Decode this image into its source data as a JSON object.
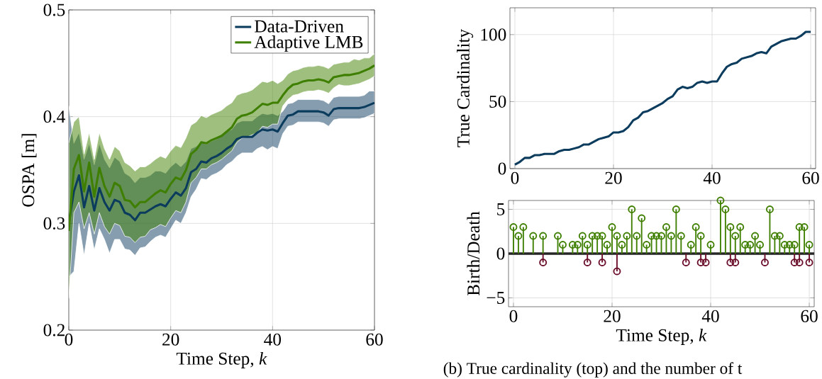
{
  "chart_data": [
    {
      "type": "line",
      "xlabel": "Time Step, *k*",
      "ylabel": "OSPA [m]",
      "xlim": [
        0,
        60
      ],
      "ylim": [
        0.2,
        0.5
      ],
      "xticks": [
        0,
        20,
        40,
        60
      ],
      "yticks": [
        0.2,
        0.3,
        0.4,
        0.5
      ],
      "grid": true,
      "legend": "top right",
      "x": [
        0,
        1,
        2,
        3,
        4,
        5,
        6,
        7,
        8,
        9,
        10,
        11,
        12,
        13,
        14,
        15,
        16,
        17,
        18,
        19,
        20,
        21,
        22,
        23,
        24,
        25,
        26,
        27,
        28,
        29,
        30,
        31,
        32,
        33,
        34,
        35,
        36,
        37,
        38,
        39,
        40,
        41,
        42,
        43,
        44,
        45,
        46,
        47,
        48,
        49,
        50,
        51,
        52,
        53,
        54,
        55,
        56,
        57,
        58,
        59,
        60
      ],
      "series": [
        {
          "name": "Data-Driven",
          "color": "#0b3c5d",
          "values": [
            0.3,
            0.33,
            0.345,
            0.315,
            0.335,
            0.312,
            0.333,
            0.32,
            0.312,
            0.322,
            0.32,
            0.31,
            0.308,
            0.303,
            0.31,
            0.31,
            0.313,
            0.316,
            0.318,
            0.316,
            0.323,
            0.329,
            0.326,
            0.333,
            0.348,
            0.351,
            0.358,
            0.357,
            0.361,
            0.363,
            0.366,
            0.37,
            0.373,
            0.379,
            0.381,
            0.381,
            0.381,
            0.385,
            0.388,
            0.387,
            0.388,
            0.386,
            0.394,
            0.401,
            0.402,
            0.405,
            0.405,
            0.405,
            0.405,
            0.405,
            0.404,
            0.401,
            0.407,
            0.408,
            0.408,
            0.408,
            0.408,
            0.408,
            0.409,
            0.411,
            0.413
          ],
          "lower": [
            0.25,
            0.255,
            0.3,
            0.27,
            0.3,
            0.275,
            0.295,
            0.285,
            0.272,
            0.285,
            0.285,
            0.276,
            0.275,
            0.27,
            0.277,
            0.278,
            0.283,
            0.287,
            0.289,
            0.287,
            0.295,
            0.303,
            0.3,
            0.31,
            0.325,
            0.332,
            0.342,
            0.341,
            0.345,
            0.347,
            0.35,
            0.355,
            0.358,
            0.363,
            0.366,
            0.366,
            0.366,
            0.37,
            0.372,
            0.369,
            0.372,
            0.37,
            0.384,
            0.391,
            0.392,
            0.395,
            0.395,
            0.395,
            0.395,
            0.395,
            0.394,
            0.391,
            0.397,
            0.398,
            0.398,
            0.398,
            0.398,
            0.398,
            0.399,
            0.401,
            0.403
          ],
          "upper": [
            0.41,
            0.375,
            0.385,
            0.36,
            0.375,
            0.355,
            0.375,
            0.36,
            0.352,
            0.362,
            0.358,
            0.347,
            0.344,
            0.338,
            0.343,
            0.343,
            0.345,
            0.349,
            0.349,
            0.347,
            0.353,
            0.357,
            0.353,
            0.358,
            0.37,
            0.372,
            0.376,
            0.374,
            0.377,
            0.379,
            0.382,
            0.386,
            0.388,
            0.394,
            0.396,
            0.396,
            0.396,
            0.4,
            0.403,
            0.402,
            0.403,
            0.401,
            0.405,
            0.412,
            0.413,
            0.416,
            0.416,
            0.416,
            0.416,
            0.416,
            0.415,
            0.412,
            0.418,
            0.419,
            0.419,
            0.419,
            0.419,
            0.419,
            0.42,
            0.424,
            0.424
          ]
        },
        {
          "name": "Adaptive LMB",
          "color": "#3f7f00",
          "values": [
            0.293,
            0.351,
            0.364,
            0.33,
            0.357,
            0.325,
            0.352,
            0.335,
            0.325,
            0.338,
            0.335,
            0.322,
            0.321,
            0.315,
            0.32,
            0.32,
            0.324,
            0.328,
            0.331,
            0.329,
            0.337,
            0.343,
            0.341,
            0.35,
            0.365,
            0.369,
            0.376,
            0.375,
            0.378,
            0.38,
            0.382,
            0.386,
            0.39,
            0.398,
            0.401,
            0.402,
            0.404,
            0.408,
            0.412,
            0.411,
            0.413,
            0.413,
            0.42,
            0.426,
            0.43,
            0.431,
            0.433,
            0.434,
            0.434,
            0.435,
            0.434,
            0.432,
            0.437,
            0.438,
            0.439,
            0.439,
            0.44,
            0.441,
            0.443,
            0.445,
            0.448
          ],
          "lower": [
            0.23,
            0.31,
            0.32,
            0.295,
            0.31,
            0.29,
            0.31,
            0.297,
            0.29,
            0.3,
            0.298,
            0.288,
            0.287,
            0.282,
            0.287,
            0.288,
            0.294,
            0.296,
            0.299,
            0.297,
            0.305,
            0.312,
            0.31,
            0.32,
            0.338,
            0.343,
            0.351,
            0.351,
            0.355,
            0.357,
            0.36,
            0.364,
            0.368,
            0.376,
            0.38,
            0.381,
            0.383,
            0.385,
            0.391,
            0.39,
            0.393,
            0.393,
            0.41,
            0.416,
            0.42,
            0.421,
            0.423,
            0.424,
            0.424,
            0.425,
            0.424,
            0.422,
            0.427,
            0.43,
            0.429,
            0.429,
            0.43,
            0.431,
            0.433,
            0.435,
            0.438
          ],
          "upper": [
            0.375,
            0.395,
            0.4,
            0.365,
            0.385,
            0.36,
            0.385,
            0.37,
            0.36,
            0.372,
            0.368,
            0.357,
            0.354,
            0.349,
            0.353,
            0.353,
            0.356,
            0.36,
            0.363,
            0.361,
            0.368,
            0.373,
            0.371,
            0.38,
            0.392,
            0.395,
            0.401,
            0.399,
            0.402,
            0.404,
            0.406,
            0.41,
            0.413,
            0.42,
            0.422,
            0.423,
            0.425,
            0.429,
            0.433,
            0.432,
            0.434,
            0.431,
            0.434,
            0.44,
            0.443,
            0.444,
            0.446,
            0.447,
            0.447,
            0.448,
            0.447,
            0.445,
            0.449,
            0.45,
            0.451,
            0.451,
            0.454,
            0.453,
            0.455,
            0.455,
            0.459
          ]
        }
      ]
    },
    {
      "type": "line",
      "ylabel": "True Cardinality",
      "xlim": [
        -1,
        61
      ],
      "ylim": [
        0,
        120
      ],
      "xticks": [
        0,
        20,
        40,
        60
      ],
      "yticks": [
        0,
        50,
        100
      ],
      "grid": true,
      "x": [
        0,
        1,
        2,
        3,
        4,
        5,
        6,
        7,
        8,
        9,
        10,
        11,
        12,
        13,
        14,
        15,
        16,
        17,
        18,
        19,
        20,
        21,
        22,
        23,
        24,
        25,
        26,
        27,
        28,
        29,
        30,
        31,
        32,
        33,
        34,
        35,
        36,
        37,
        38,
        39,
        40,
        41,
        42,
        43,
        44,
        45,
        46,
        47,
        48,
        49,
        50,
        51,
        52,
        53,
        54,
        55,
        56,
        57,
        58,
        59,
        60
      ],
      "series": [
        {
          "color": "#0b3c5d",
          "values": [
            3,
            5,
            8,
            8,
            10,
            10,
            11,
            11,
            11,
            13,
            14,
            14,
            15,
            16,
            18,
            18,
            20,
            22,
            23,
            24,
            27,
            27,
            28,
            31,
            36,
            38,
            42,
            43,
            45,
            47,
            49,
            52,
            54,
            59,
            61,
            60,
            61,
            64,
            65,
            64,
            65,
            65,
            71,
            76,
            78,
            79,
            82,
            83,
            84,
            86,
            87,
            86,
            91,
            93,
            95,
            96,
            97,
            97,
            99,
            102,
            102
          ]
        }
      ]
    },
    {
      "type": "lollipop",
      "xlabel": "Time Step, *k*",
      "ylabel": "Birth/Death",
      "xlim": [
        -1,
        61
      ],
      "ylim": [
        -6,
        6
      ],
      "xticks": [
        0,
        20,
        40,
        60
      ],
      "yticks": [
        {
          "value": -5,
          "label": "−5"
        },
        0,
        5
      ],
      "grid": true,
      "marker": "circle",
      "ref_lines": [
        {
          "axis": "y",
          "value": 0,
          "color": "#262626"
        }
      ],
      "annotations": [
        "(b) True cardinality (top) and the number of t"
      ],
      "series": [
        {
          "color": "#3f7f00",
          "x": [
            0,
            1,
            2,
            4,
            6,
            9,
            10,
            12,
            13,
            14,
            15,
            16,
            17,
            18,
            19,
            20,
            21,
            22,
            23,
            24,
            25,
            26,
            27,
            28,
            29,
            30,
            31,
            32,
            33,
            34,
            36,
            37,
            38,
            40,
            42,
            43,
            44,
            45,
            46,
            47,
            48,
            49,
            50,
            52,
            53,
            54,
            55,
            56,
            57,
            58,
            59,
            60
          ],
          "values": [
            3,
            2,
            3,
            2,
            2,
            2,
            1,
            1,
            1,
            2,
            1,
            2,
            2,
            2,
            1,
            3,
            2,
            1,
            2,
            5,
            2,
            4,
            1,
            2,
            2,
            2,
            3,
            2,
            5,
            2,
            1,
            3,
            2,
            1,
            6,
            5,
            3,
            2,
            3,
            1,
            1,
            2,
            1,
            5,
            2,
            2,
            1,
            1,
            1,
            3,
            3,
            1
          ]
        },
        {
          "color": "#6b0f2b",
          "x": [
            6,
            15,
            18,
            21,
            35,
            38,
            39,
            44,
            45,
            51,
            57,
            58,
            60
          ],
          "values": [
            -1,
            -1,
            -1,
            -2,
            -1,
            -1,
            -1,
            -1,
            -1,
            -1,
            -1,
            -1,
            -1
          ]
        }
      ]
    }
  ]
}
